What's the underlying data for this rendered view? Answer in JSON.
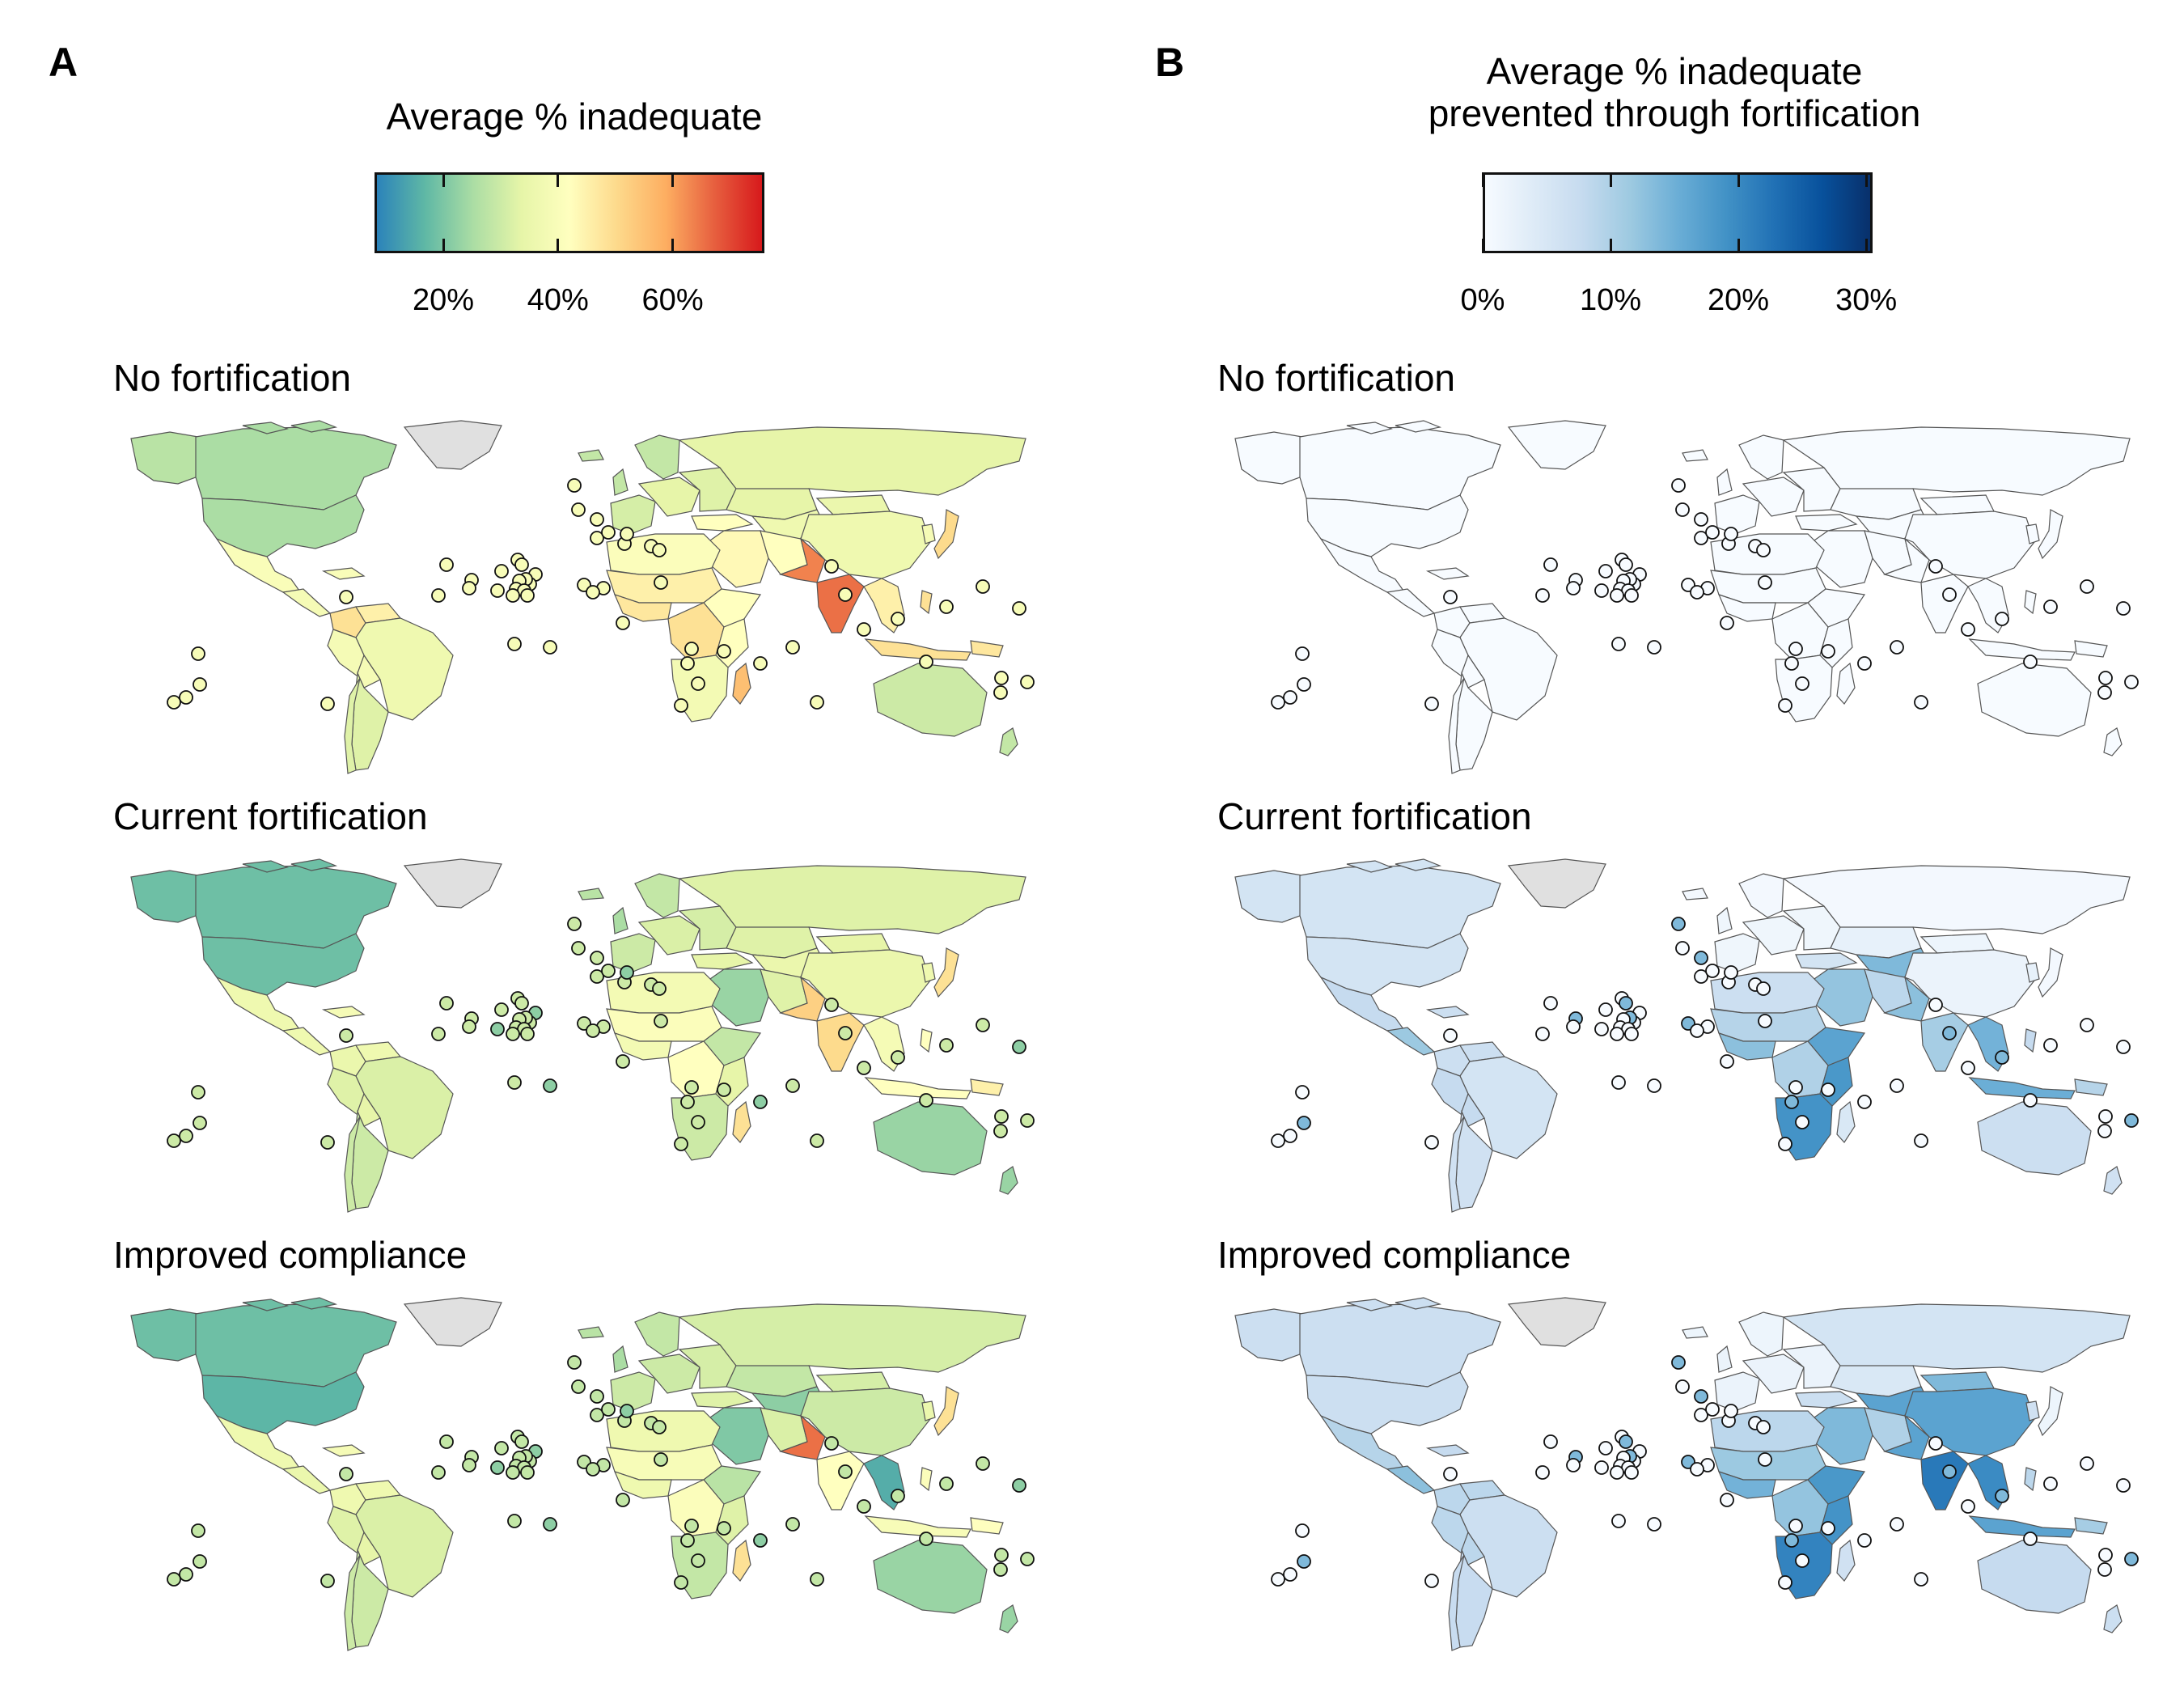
{
  "panel_a": {
    "letter": "A",
    "legend": {
      "title": "Average % inadequate",
      "ticks": [
        "20%",
        "40%",
        "60%"
      ],
      "tick_values": [
        20,
        40,
        60
      ],
      "range": [
        8,
        76
      ],
      "colors": [
        "#2b83ba",
        "#5fb8a5",
        "#abdda4",
        "#e6f5a8",
        "#ffffbf",
        "#fdd98b",
        "#fdae61",
        "#e7603f",
        "#d7191c"
      ]
    }
  },
  "panel_b": {
    "letter": "B",
    "legend": {
      "title_line1": "Average % inadequate",
      "title_line2": "prevented through fortification",
      "ticks": [
        "0%",
        "10%",
        "20%",
        "30%"
      ],
      "tick_values": [
        0,
        10,
        20,
        30
      ],
      "range": [
        0,
        30.5
      ],
      "colors": [
        "#f7fbff",
        "#deebf7",
        "#c6dbef",
        "#9ecae1",
        "#6baed6",
        "#4292c6",
        "#2171b5",
        "#08519c",
        "#08306b"
      ]
    }
  },
  "scenarios": [
    "No fortification",
    "Current fortification",
    "Improved compliance"
  ],
  "map_colors": {
    "no_data": "#e0e0e0",
    "border": "#555555"
  }
}
